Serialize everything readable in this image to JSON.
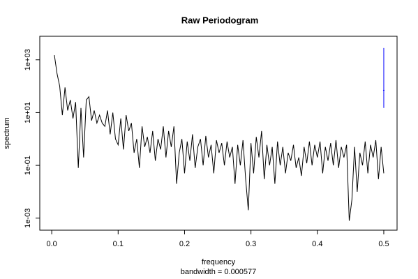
{
  "chart_data": {
    "type": "line",
    "title": "Raw Periodogram",
    "x_label": "frequency",
    "subtitle": "bandwidth = 0.000577",
    "y_label": "spectrum",
    "log_y": true,
    "grid": false,
    "xlim": [
      -0.018,
      0.52
    ],
    "ylim": [
      0.00035,
      7800
    ],
    "xticks": [
      {
        "value": 0,
        "label": "0.0"
      },
      0.1,
      0.2,
      0.3,
      0.4,
      0.5
    ],
    "yticks": [
      {
        "value": 1000,
        "label": "1e+03"
      },
      {
        "value": 10,
        "label": "1e+01"
      },
      {
        "value": 0.1,
        "label": "1e-01"
      },
      {
        "value": 0.001,
        "label": "1e-03"
      }
    ],
    "series": [
      {
        "name": "spectrum",
        "color": "#000000",
        "x": [
          0.004,
          0.008,
          0.012,
          0.016,
          0.02,
          0.024,
          0.028,
          0.032,
          0.036,
          0.04,
          0.044,
          0.048,
          0.052,
          0.056,
          0.06,
          0.064,
          0.068,
          0.072,
          0.076,
          0.08,
          0.084,
          0.088,
          0.092,
          0.096,
          0.1,
          0.104,
          0.108,
          0.112,
          0.116,
          0.12,
          0.124,
          0.128,
          0.132,
          0.136,
          0.14,
          0.144,
          0.148,
          0.152,
          0.156,
          0.16,
          0.164,
          0.168,
          0.172,
          0.176,
          0.18,
          0.184,
          0.188,
          0.192,
          0.196,
          0.2,
          0.204,
          0.208,
          0.212,
          0.216,
          0.22,
          0.224,
          0.228,
          0.232,
          0.236,
          0.24,
          0.244,
          0.248,
          0.252,
          0.256,
          0.26,
          0.264,
          0.268,
          0.272,
          0.276,
          0.28,
          0.284,
          0.288,
          0.292,
          0.296,
          0.3,
          0.304,
          0.308,
          0.312,
          0.316,
          0.32,
          0.324,
          0.328,
          0.332,
          0.336,
          0.34,
          0.344,
          0.348,
          0.352,
          0.356,
          0.36,
          0.364,
          0.368,
          0.372,
          0.376,
          0.38,
          0.384,
          0.388,
          0.392,
          0.396,
          0.4,
          0.404,
          0.408,
          0.412,
          0.416,
          0.42,
          0.424,
          0.428,
          0.432,
          0.436,
          0.44,
          0.444,
          0.448,
          0.452,
          0.456,
          0.46,
          0.464,
          0.468,
          0.472,
          0.476,
          0.48,
          0.484,
          0.488,
          0.492,
          0.496,
          0.5
        ],
        "values": [
          1500,
          300,
          100,
          8,
          90,
          12,
          30,
          6,
          25,
          0.08,
          15,
          0.2,
          30,
          40,
          5,
          12,
          4,
          8,
          4,
          3,
          12,
          1.5,
          10,
          1,
          0.6,
          6,
          0.4,
          8,
          2,
          4,
          0.3,
          1,
          0.08,
          3,
          0.5,
          1.2,
          0.3,
          2,
          0.15,
          1,
          0.4,
          3,
          0.2,
          2,
          0.5,
          3,
          0.02,
          0.3,
          1,
          0.05,
          0.8,
          0.15,
          1.5,
          0.08,
          0.5,
          1,
          0.1,
          1.3,
          0.2,
          0.6,
          0.05,
          0.9,
          0.3,
          0.7,
          0.1,
          0.8,
          0.2,
          0.5,
          0.02,
          0.6,
          0.1,
          0.9,
          0.03,
          0.002,
          0.7,
          0.05,
          1.2,
          0.2,
          2,
          0.03,
          0.6,
          0.1,
          0.5,
          0.02,
          0.8,
          0.1,
          0.5,
          0.05,
          0.3,
          0.15,
          0.6,
          0.08,
          0.2,
          0.04,
          0.5,
          0.12,
          0.8,
          0.1,
          0.6,
          0.2,
          0.8,
          0.05,
          0.5,
          0.15,
          0.7,
          0.1,
          0.9,
          0.08,
          0.5,
          0.2,
          0.6,
          0.0008,
          0.005,
          0.5,
          0.01,
          0.3,
          0.1,
          0.8,
          0.05,
          0.6,
          0.2,
          0.9,
          0.03,
          0.5,
          0.05
        ]
      }
    ],
    "ci_bar": {
      "x": 0.5,
      "lower": 15,
      "center": 70,
      "upper": 2800,
      "color": "#0000ff"
    }
  }
}
